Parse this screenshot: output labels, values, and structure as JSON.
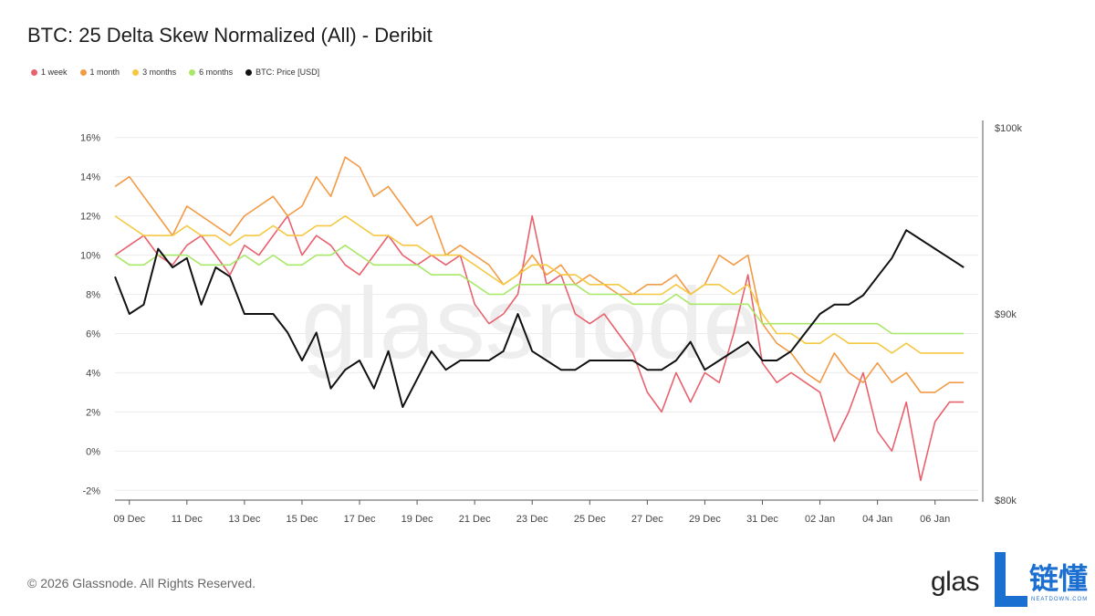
{
  "page": {
    "footer": "© 2026 Glassnode. All Rights Reserved.",
    "logo_text": "glas",
    "logo_cn": "链懂",
    "logo_sub": "NEATDOWN.COM",
    "watermark": "glassnode"
  },
  "chart_data": {
    "type": "line",
    "title": "BTC: 25 Delta Skew Normalized (All) - Deribit",
    "x_ticks": [
      "09 Dec",
      "11 Dec",
      "13 Dec",
      "15 Dec",
      "17 Dec",
      "19 Dec",
      "21 Dec",
      "23 Dec",
      "25 Dec",
      "27 Dec",
      "29 Dec",
      "31 Dec",
      "02 Jan",
      "04 Jan",
      "06 Jan"
    ],
    "x_range_days": [
      8.5,
      38.5
    ],
    "left_axis": {
      "ticks": [
        "-2%",
        "0%",
        "2%",
        "4%",
        "6%",
        "8%",
        "10%",
        "12%",
        "14%",
        "16%"
      ],
      "range": [
        -2.5,
        16.5
      ],
      "unit": "%"
    },
    "right_axis": {
      "ticks": [
        "$80k",
        "$90k",
        "$100k"
      ],
      "range": [
        80000,
        100000
      ],
      "unit": "USD"
    },
    "grid": true,
    "legend_position": "top-left",
    "series": [
      {
        "name": "1 week",
        "color": "#e8616e",
        "axis": "left",
        "x": [
          8.5,
          9,
          9.5,
          10,
          10.5,
          11,
          11.5,
          12,
          12.5,
          13,
          13.5,
          14,
          14.5,
          15,
          15.5,
          16,
          16.5,
          17,
          17.5,
          18,
          18.5,
          19,
          19.5,
          20,
          20.5,
          21,
          21.5,
          22,
          22.5,
          23,
          23.5,
          24,
          24.5,
          25,
          25.5,
          26,
          26.5,
          27,
          27.5,
          28,
          28.5,
          29,
          29.5,
          30,
          30.5,
          31,
          31.5,
          32,
          32.5,
          33,
          33.5,
          34,
          34.5,
          35,
          35.5,
          36,
          36.5,
          37,
          37.5,
          38
        ],
        "values": [
          10,
          10.5,
          11,
          10,
          9.5,
          10.5,
          11,
          10,
          9,
          10.5,
          10,
          11,
          12,
          10,
          11,
          10.5,
          9.5,
          9,
          10,
          11,
          10,
          9.5,
          10,
          9.5,
          10,
          7.5,
          6.5,
          7,
          8,
          12,
          8.5,
          9,
          7,
          6.5,
          7,
          6,
          5,
          3,
          2,
          4,
          2.5,
          4,
          3.5,
          6,
          9,
          4.5,
          3.5,
          4,
          3.5,
          3,
          0.5,
          2,
          4,
          1,
          0,
          2.5,
          -1.5,
          1.5,
          2.5,
          2.5
        ]
      },
      {
        "name": "1 month",
        "color": "#f29a45",
        "axis": "left",
        "x": [
          8.5,
          9,
          9.5,
          10,
          10.5,
          11,
          11.5,
          12,
          12.5,
          13,
          13.5,
          14,
          14.5,
          15,
          15.5,
          16,
          16.5,
          17,
          17.5,
          18,
          18.5,
          19,
          19.5,
          20,
          20.5,
          21,
          21.5,
          22,
          22.5,
          23,
          23.5,
          24,
          24.5,
          25,
          25.5,
          26,
          26.5,
          27,
          27.5,
          28,
          28.5,
          29,
          29.5,
          30,
          30.5,
          31,
          31.5,
          32,
          32.5,
          33,
          33.5,
          34,
          34.5,
          35,
          35.5,
          36,
          36.5,
          37,
          37.5,
          38
        ],
        "values": [
          13.5,
          14,
          13,
          12,
          11,
          12.5,
          12,
          11.5,
          11,
          12,
          12.5,
          13,
          12,
          12.5,
          14,
          13,
          15,
          14.5,
          13,
          13.5,
          12.5,
          11.5,
          12,
          10,
          10.5,
          10,
          9.5,
          8.5,
          9,
          10,
          9,
          9.5,
          8.5,
          9,
          8.5,
          8,
          8,
          8.5,
          8.5,
          9,
          8,
          8.5,
          10,
          9.5,
          10,
          6.5,
          5.5,
          5,
          4,
          3.5,
          5,
          4,
          3.5,
          4.5,
          3.5,
          4,
          3,
          3,
          3.5,
          3.5
        ]
      },
      {
        "name": "3 months",
        "color": "#f5c842",
        "axis": "left",
        "x": [
          8.5,
          9,
          9.5,
          10,
          10.5,
          11,
          11.5,
          12,
          12.5,
          13,
          13.5,
          14,
          14.5,
          15,
          15.5,
          16,
          16.5,
          17,
          17.5,
          18,
          18.5,
          19,
          19.5,
          20,
          20.5,
          21,
          21.5,
          22,
          22.5,
          23,
          23.5,
          24,
          24.5,
          25,
          25.5,
          26,
          26.5,
          27,
          27.5,
          28,
          28.5,
          29,
          29.5,
          30,
          30.5,
          31,
          31.5,
          32,
          32.5,
          33,
          33.5,
          34,
          34.5,
          35,
          35.5,
          36,
          36.5,
          37,
          37.5,
          38
        ],
        "values": [
          12,
          11.5,
          11,
          11,
          11,
          11.5,
          11,
          11,
          10.5,
          11,
          11,
          11.5,
          11,
          11,
          11.5,
          11.5,
          12,
          11.5,
          11,
          11,
          10.5,
          10.5,
          10,
          10,
          10,
          9.5,
          9,
          8.5,
          9,
          9.5,
          9.5,
          9,
          9,
          8.5,
          8.5,
          8.5,
          8,
          8,
          8,
          8.5,
          8,
          8.5,
          8.5,
          8,
          8.5,
          7,
          6,
          6,
          5.5,
          5.5,
          6,
          5.5,
          5.5,
          5.5,
          5,
          5.5,
          5,
          5,
          5,
          5
        ]
      },
      {
        "name": "6 months",
        "color": "#a8e868",
        "axis": "left",
        "x": [
          8.5,
          9,
          9.5,
          10,
          10.5,
          11,
          11.5,
          12,
          12.5,
          13,
          13.5,
          14,
          14.5,
          15,
          15.5,
          16,
          16.5,
          17,
          17.5,
          18,
          18.5,
          19,
          19.5,
          20,
          20.5,
          21,
          21.5,
          22,
          22.5,
          23,
          23.5,
          24,
          24.5,
          25,
          25.5,
          26,
          26.5,
          27,
          27.5,
          28,
          28.5,
          29,
          29.5,
          30,
          30.5,
          31,
          31.5,
          32,
          32.5,
          33,
          33.5,
          34,
          34.5,
          35,
          35.5,
          36,
          36.5,
          37,
          37.5,
          38
        ],
        "values": [
          10,
          9.5,
          9.5,
          10,
          10,
          10,
          9.5,
          9.5,
          9.5,
          10,
          9.5,
          10,
          9.5,
          9.5,
          10,
          10,
          10.5,
          10,
          9.5,
          9.5,
          9.5,
          9.5,
          9,
          9,
          9,
          8.5,
          8,
          8,
          8.5,
          8.5,
          8.5,
          8.5,
          8.5,
          8,
          8,
          8,
          7.5,
          7.5,
          7.5,
          8,
          7.5,
          7.5,
          7.5,
          7.5,
          7.5,
          6.5,
          6.5,
          6.5,
          6.5,
          6.5,
          6.5,
          6.5,
          6.5,
          6.5,
          6,
          6,
          6,
          6,
          6,
          6
        ]
      },
      {
        "name": "BTC: Price [USD]",
        "color": "#111111",
        "axis": "right",
        "x": [
          8.5,
          9,
          9.5,
          10,
          10.5,
          11,
          11.5,
          12,
          12.5,
          13,
          13.5,
          14,
          14.5,
          15,
          15.5,
          16,
          16.5,
          17,
          17.5,
          18,
          18.5,
          19,
          19.5,
          20,
          20.5,
          21,
          21.5,
          22,
          22.5,
          23,
          23.5,
          24,
          24.5,
          25,
          25.5,
          26,
          26.5,
          27,
          27.5,
          28,
          28.5,
          29,
          29.5,
          30,
          30.5,
          31,
          31.5,
          32,
          32.5,
          33,
          33.5,
          34,
          34.5,
          35,
          35.5,
          36,
          36.5,
          37,
          37.5,
          38
        ],
        "values": [
          92000,
          90000,
          90500,
          93500,
          92500,
          93000,
          90500,
          92500,
          92000,
          90000,
          90000,
          90000,
          89000,
          87500,
          89000,
          86000,
          87000,
          87500,
          86000,
          88000,
          85000,
          86500,
          88000,
          87000,
          87500,
          87500,
          87500,
          88000,
          90000,
          88000,
          87500,
          87000,
          87000,
          87500,
          87500,
          87500,
          87500,
          87000,
          87000,
          87500,
          88500,
          87000,
          87500,
          88000,
          88500,
          87500,
          87500,
          88000,
          89000,
          90000,
          90500,
          90500,
          91000,
          92000,
          93000,
          94500,
          94000,
          93500,
          93000,
          92500
        ]
      }
    ]
  }
}
